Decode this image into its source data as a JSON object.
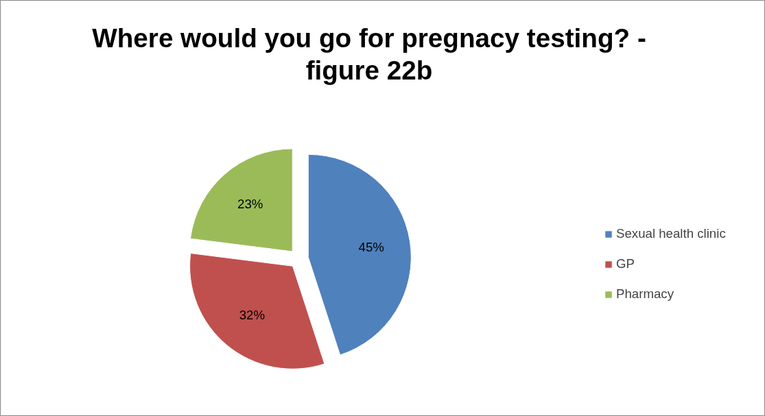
{
  "chart_data": {
    "type": "pie",
    "title": "Where would you go for pregnacy testing? - figure 22b",
    "categories": [
      "Sexual health clinic",
      "GP",
      "Pharmacy"
    ],
    "values": [
      45,
      32,
      23
    ],
    "value_labels": [
      "45%",
      "32%",
      "23%"
    ],
    "colors": [
      "#4f81bd",
      "#c0504d",
      "#9bbb59"
    ],
    "legend": "right"
  }
}
